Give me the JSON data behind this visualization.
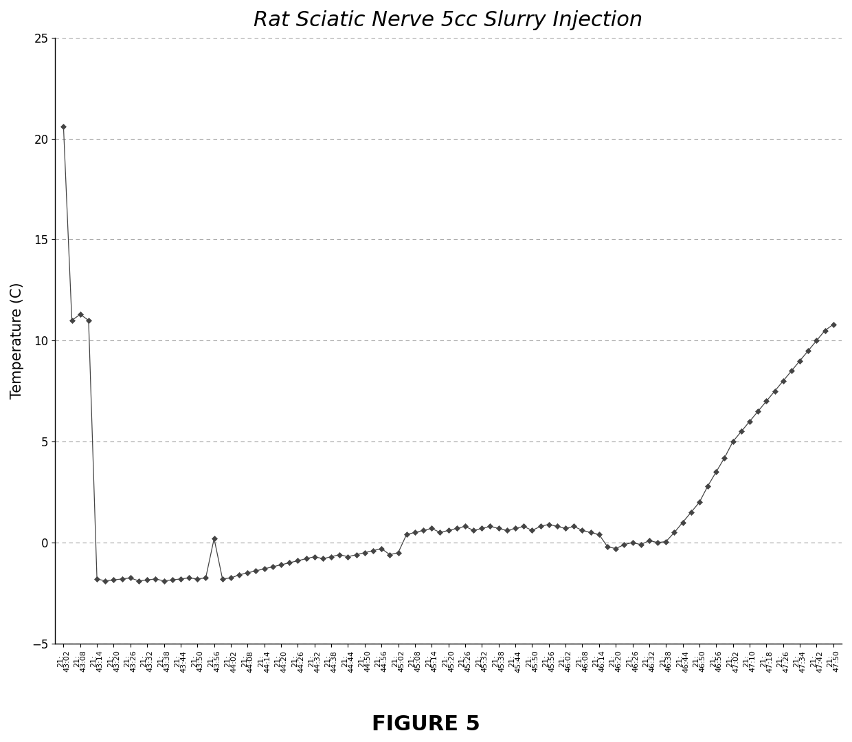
{
  "title": "Rat Sciatic Nerve 5cc Slurry Injection",
  "ylabel": "Temperature (C)",
  "figure_caption": "FIGURE 5",
  "ylim": [
    -5,
    25
  ],
  "yticks": [
    -5,
    0,
    5,
    10,
    15,
    20,
    25
  ],
  "grid_color": "#999999",
  "line_color": "#444444",
  "marker": "D",
  "marker_size": 4,
  "background_color": "#ffffff",
  "title_fontsize": 22,
  "ylabel_fontsize": 15,
  "caption_fontsize": 22,
  "tick_fontsize": 8,
  "x_labels": [
    "21:\n43:02",
    "21:\n43:08",
    "21:\n43:14",
    "21:\n43:20",
    "21:\n43:26",
    "21:\n43:32",
    "21:\n43:38",
    "21:\n43:44",
    "21:\n43:50",
    "21:\n43:56",
    "21:\n44:02",
    "21:\n44:08",
    "21:\n44:14",
    "21:\n44:20",
    "21:\n44:26",
    "21:\n44:32",
    "21:\n44:38",
    "21:\n44:44",
    "21:\n44:50",
    "21:\n44:56",
    "21:\n45:02",
    "21:\n45:08",
    "21:\n45:14",
    "21:\n45:20",
    "21:\n45:26",
    "21:\n45:32",
    "21:\n45:38",
    "21:\n45:44",
    "21:\n45:50",
    "21:\n45:56",
    "21:\n46:02",
    "21:\n46:08",
    "21:\n46:14",
    "21:\n46:20",
    "21:\n46:26",
    "21:\n46:32",
    "21:\n46:38",
    "21:\n46:44",
    "21:\n46:50",
    "21:\n46:56",
    "21:\n47:02",
    "21:\n47:10",
    "21:\n47:18",
    "21:\n47:26",
    "21:\n47:34",
    "21:\n47:42",
    "21:\n47:50"
  ],
  "y_values": [
    20.6,
    11.0,
    11.3,
    11.0,
    -1.8,
    -1.9,
    -1.85,
    -1.8,
    -1.75,
    -1.9,
    -1.85,
    -1.8,
    -1.9,
    -1.85,
    -1.8,
    -1.75,
    -1.8,
    -1.75,
    0.2,
    -1.8,
    -1.75,
    -1.6,
    -1.5,
    -1.4,
    -1.3,
    -1.2,
    -1.1,
    -1.0,
    -0.9,
    -0.8,
    -0.7,
    -0.8,
    -0.7,
    -0.6,
    -0.7,
    -0.6,
    -0.5,
    -0.4,
    -0.3,
    -0.6,
    -0.5,
    0.4,
    0.5,
    0.6,
    0.7,
    0.5,
    0.6,
    0.7,
    0.8,
    0.6,
    0.7,
    0.8,
    0.7,
    0.6,
    0.7,
    0.8,
    0.6,
    0.8,
    0.9,
    0.8,
    0.7,
    0.8,
    0.6,
    0.5,
    0.4,
    -0.2,
    -0.3,
    -0.1,
    0.0,
    -0.1,
    0.1,
    0.0,
    0.05,
    0.5,
    1.0,
    1.5,
    2.0,
    2.8,
    3.5,
    4.2,
    5.0,
    5.5,
    6.0,
    6.5,
    7.0,
    7.5,
    8.0,
    8.5,
    9.0,
    9.5,
    10.0,
    10.5,
    10.8
  ]
}
